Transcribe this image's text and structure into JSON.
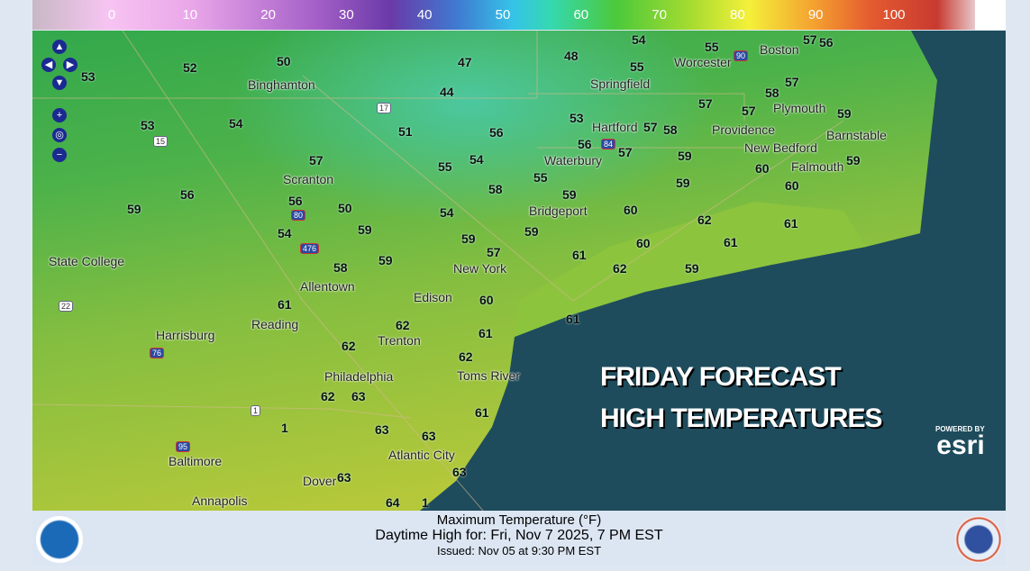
{
  "legend": {
    "ticks": [
      "0",
      "10",
      "20",
      "30",
      "40",
      "50",
      "60",
      "70",
      "80",
      "90",
      "100"
    ],
    "units": "°F"
  },
  "temperatures": [
    "53",
    "52",
    "50",
    "47",
    "48",
    "54",
    "55",
    "57",
    "56",
    "57",
    "44",
    "55",
    "53",
    "54",
    "51",
    "56",
    "53",
    "57",
    "58",
    "57",
    "58",
    "59",
    "57",
    "56",
    "57",
    "59",
    "60",
    "59",
    "60",
    "55",
    "54",
    "57",
    "56",
    "50",
    "56",
    "59",
    "58",
    "55",
    "59",
    "60",
    "54",
    "59",
    "62",
    "61",
    "59",
    "54",
    "59",
    "57",
    "59",
    "60",
    "61",
    "61",
    "62",
    "59",
    "58",
    "59",
    "60",
    "61",
    "62",
    "61",
    "61",
    "62",
    "62",
    "63",
    "62",
    "61",
    "63",
    "63",
    "63",
    "63",
    "64",
    "1",
    "1"
  ],
  "places": [
    "Binghamton",
    "Springfield",
    "Worcester",
    "Boston",
    "Plymouth",
    "Providence",
    "Hartford",
    "Barnstable",
    "New Bedford",
    "Falmouth",
    "Waterbury",
    "Scranton",
    "Bridgeport",
    "State College",
    "New York",
    "Allentown",
    "Edison",
    "Reading",
    "Harrisburg",
    "Trenton",
    "Philadelphia",
    "Toms River",
    "Atlantic City",
    "Baltimore",
    "Dover",
    "Annapolis"
  ],
  "highways": [
    "90",
    "17",
    "84",
    "15",
    "80",
    "476",
    "22",
    "76",
    "1",
    "95"
  ],
  "overlay": {
    "line1": "FRIDAY FORECAST",
    "line2": "HIGH TEMPERATURES"
  },
  "esri": {
    "powered_by": "POWERED BY",
    "logo": "esri"
  },
  "nav": {
    "zoom_in": "+",
    "zoom_out": "−"
  },
  "footer": {
    "title": "Maximum Temperature (°F)",
    "valid": "Daytime High for: Fri, Nov   7 2025,   7 PM EST",
    "issued": "Issued: Nov 05 at 9:30 PM EST",
    "left_logo": "NOAA",
    "right_logo": "National Weather Service"
  },
  "colors": {
    "ocean": "#1e4c5c",
    "land_north": "#3fae5a",
    "land_south": "#a8c83c",
    "footer_bg": "#dce6f3"
  }
}
